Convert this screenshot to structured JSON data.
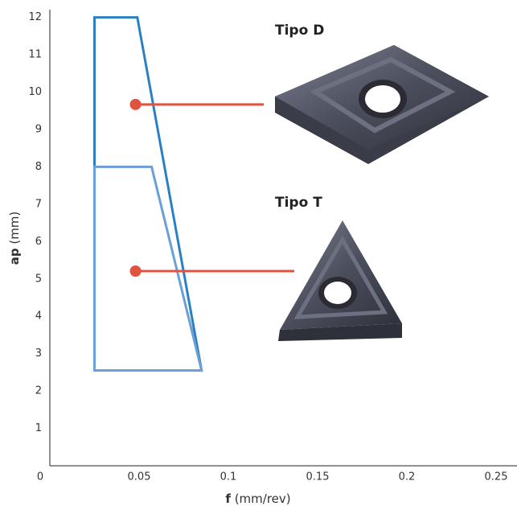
{
  "chart_data": {
    "type": "area-polygon",
    "xlabel": {
      "symbol": "f",
      "unit": "(mm/rev)"
    },
    "ylabel": {
      "symbol": "ap",
      "unit": "(mm)"
    },
    "xlim": [
      0,
      0.26
    ],
    "ylim": [
      0,
      12.2
    ],
    "xticks": [
      0,
      0.05,
      0.1,
      0.15,
      0.2,
      0.25
    ],
    "yticks": [
      1,
      2,
      3,
      4,
      5,
      6,
      7,
      8,
      9,
      10,
      11,
      12
    ],
    "marker_color": "#e0533f",
    "series": [
      {
        "name": "Tipo D",
        "color": "#2b80c3",
        "x": [
          0.025,
          0.025,
          0.049,
          0.085
        ],
        "y": [
          2.55,
          12,
          12,
          2.55
        ],
        "marker_x": 0.048,
        "marker_y": 9.67
      },
      {
        "name": "Tipo T",
        "color": "#6b9fd6",
        "x": [
          0.025,
          0.025,
          0.057,
          0.085
        ],
        "y": [
          2.55,
          8,
          8,
          2.55
        ],
        "marker_x": 0.048,
        "marker_y": 5.21
      }
    ]
  }
}
